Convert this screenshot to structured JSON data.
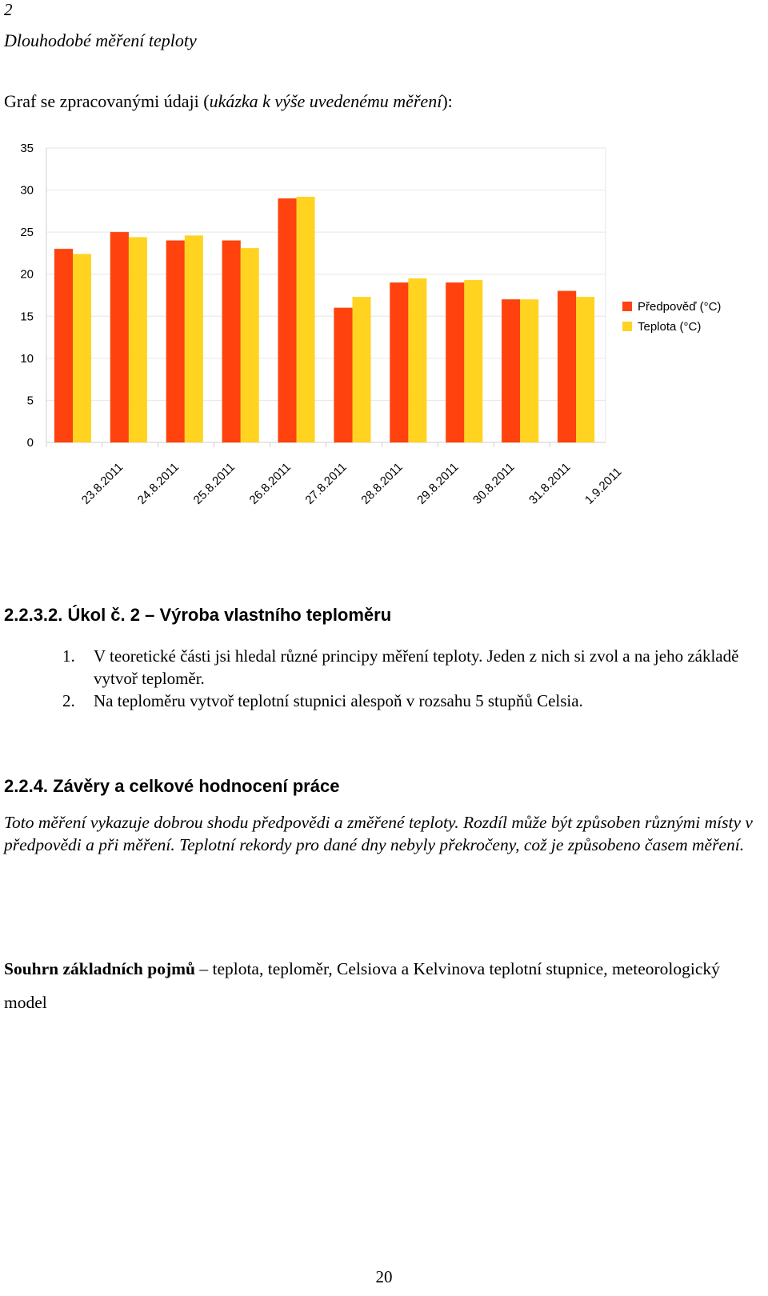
{
  "header": {
    "section_number": "2",
    "section_title": "Dlouhodobé měření teploty"
  },
  "chart_intro": {
    "prefix": "Graf se zpracovanými údaji ",
    "paren_open": "(",
    "italic_part": "ukázka k výše uvedenému měření",
    "paren_close": "):"
  },
  "chart_data": {
    "type": "bar",
    "categories": [
      "23.8.2011",
      "24.8.2011",
      "25.8.2011",
      "26.8.2011",
      "27.8.2011",
      "28.8.2011",
      "29.8.2011",
      "30.8.2011",
      "31.8.2011",
      "1.9.2011"
    ],
    "series": [
      {
        "name": "Předpověď (°C)",
        "color": "#ff420e",
        "values": [
          23,
          25,
          24,
          24,
          29,
          16,
          19,
          19,
          17,
          18
        ]
      },
      {
        "name": "Teplota (°C)",
        "color": "#ffd320",
        "values": [
          22.4,
          24.4,
          24.6,
          23.1,
          29.2,
          17.3,
          19.5,
          19.3,
          17.0,
          17.3
        ]
      }
    ],
    "yticks": [
      "0",
      "5",
      "10",
      "15",
      "20",
      "25",
      "30",
      "35"
    ],
    "ylim": [
      0,
      35
    ],
    "grid": true,
    "legend_position": "right",
    "title": "",
    "xlabel": "",
    "ylabel": ""
  },
  "task_section": {
    "heading": "2.2.3.2. Úkol č. 2 – Výroba vlastního teploměru",
    "items": [
      {
        "number": "1.",
        "text": "V teoretické části jsi hledal různé principy měření teploty. Jeden z nich si zvol a na jeho základě vytvoř teploměr."
      },
      {
        "number": "2.",
        "text": "Na teploměru vytvoř teplotní stupnici alespoň v rozsahu 5 stupňů Celsia."
      }
    ]
  },
  "conclusion_section": {
    "heading": "2.2.4. Závěry a celkové hodnocení práce",
    "text": "Toto měření vykazuje dobrou shodu předpovědi a změřené teploty. Rozdíl může být způsoben různými místy v předpovědi a při měření. Teplotní rekordy pro dané dny nebyly překročeny, což je způsobeno časem měření."
  },
  "summary": {
    "label": "Souhrn základních pojmů",
    "text": " – teplota, teploměr, Celsiova a Kelvinova teplotní stupnice, meteorologický model"
  },
  "footer": {
    "page_number": "20"
  }
}
